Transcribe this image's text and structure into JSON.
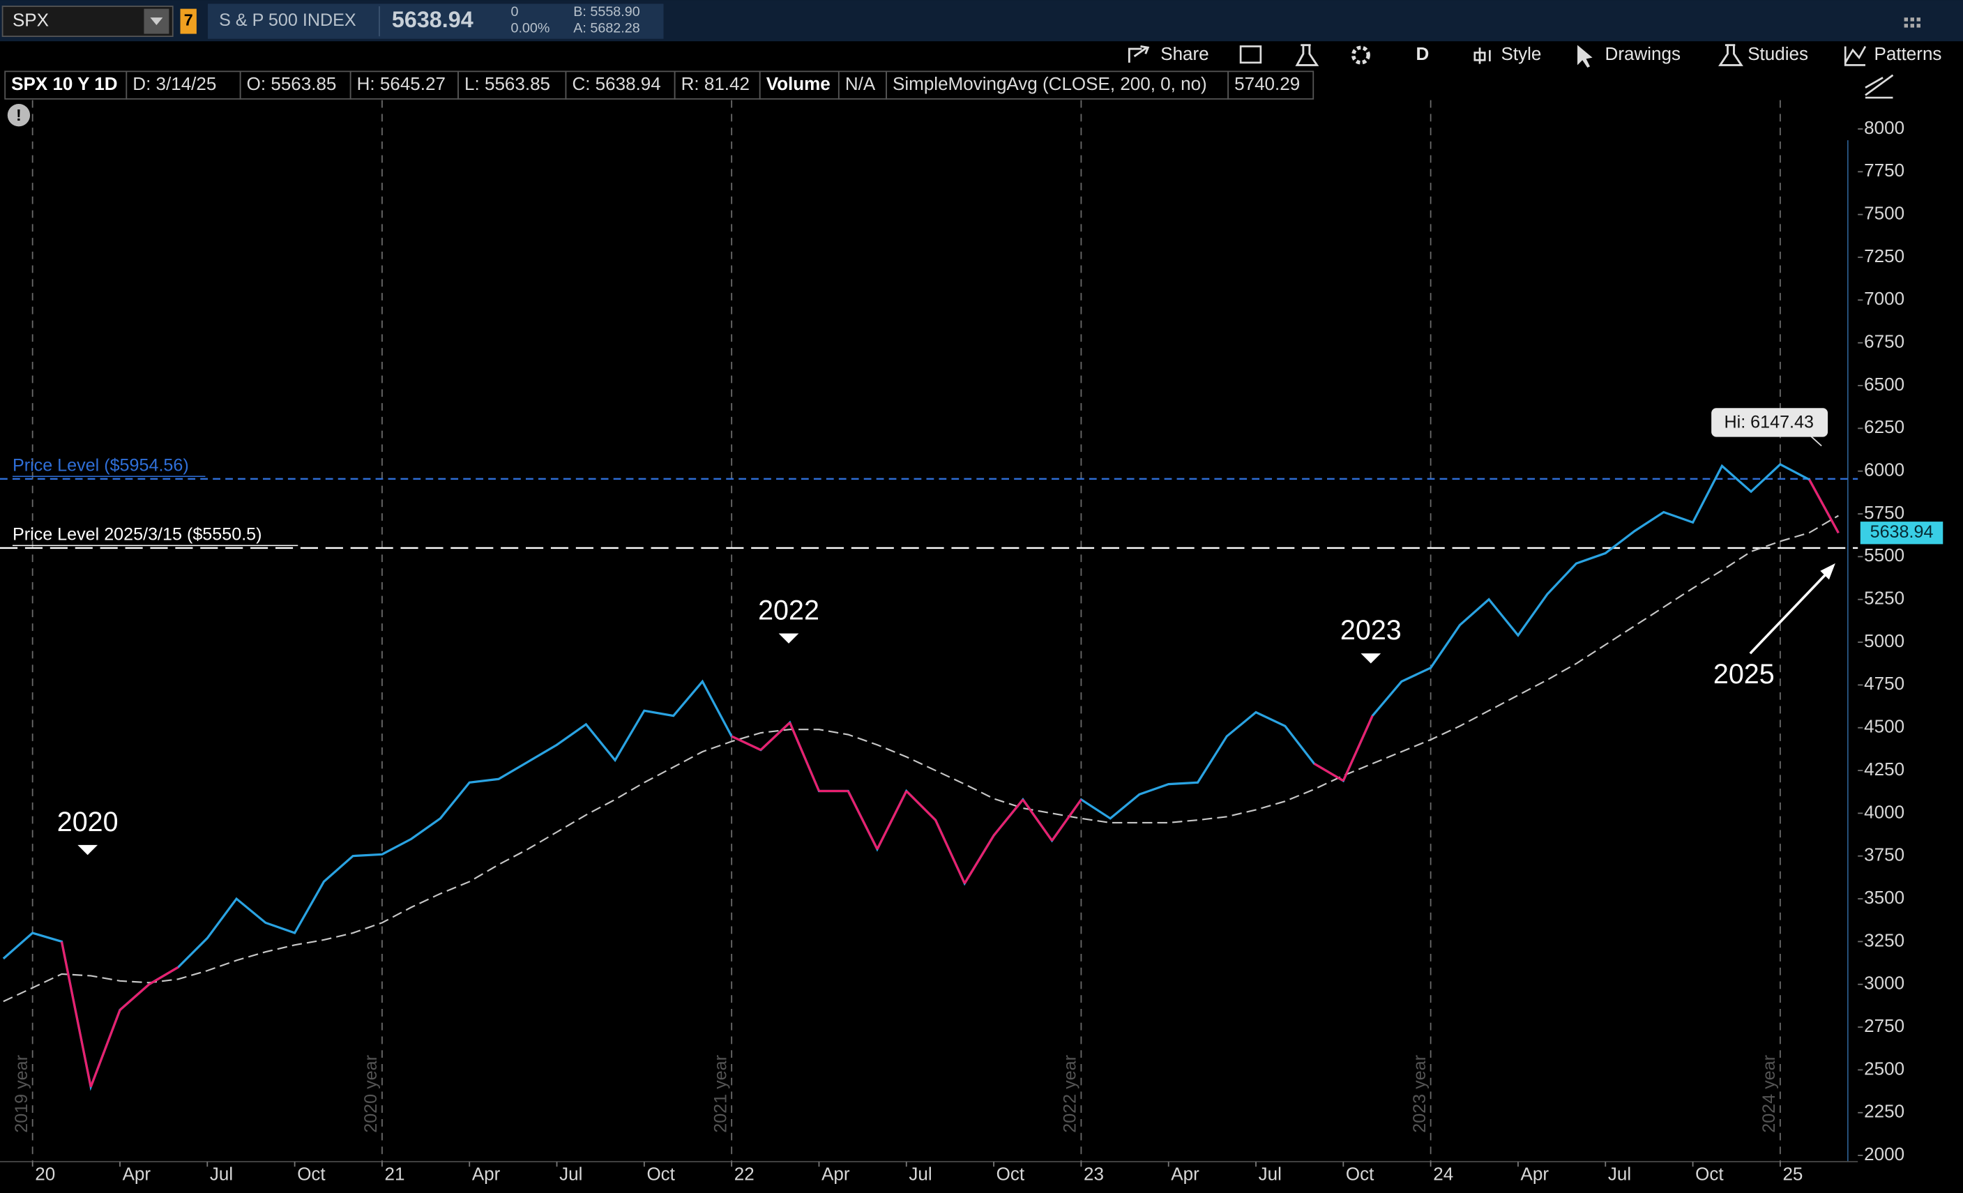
{
  "header": {
    "symbol": "SPX",
    "badge": "7",
    "description": "S & P 500 INDEX",
    "last": "5638.94",
    "change": "0",
    "change_pct": "0.00%",
    "bid": "B: 5558.90",
    "ask": "A: 5682.28"
  },
  "toolbar": {
    "share": "Share",
    "period": "D",
    "style": "Style",
    "drawings": "Drawings",
    "studies": "Studies",
    "patterns": "Patterns"
  },
  "info_bar": [
    "SPX 10 Y 1D",
    "D: 3/14/25",
    "O: 5563.85",
    "H: 5645.27",
    "L: 5563.85",
    "C: 5638.94",
    "R: 81.42",
    "Volume",
    "N/A",
    "5740.29"
  ],
  "chart_data": {
    "type": "line",
    "x": [
      "2019-12",
      "2020-01",
      "2020-02",
      "2020-03",
      "2020-04",
      "2020-05",
      "2020-06",
      "2020-07",
      "2020-08",
      "2020-09",
      "2020-10",
      "2020-11",
      "2020-12",
      "2021-01",
      "2021-02",
      "2021-03",
      "2021-04",
      "2021-05",
      "2021-06",
      "2021-07",
      "2021-08",
      "2021-09",
      "2021-10",
      "2021-11",
      "2021-12",
      "2022-01",
      "2022-02",
      "2022-03",
      "2022-04",
      "2022-05",
      "2022-06",
      "2022-07",
      "2022-08",
      "2022-09",
      "2022-10",
      "2022-11",
      "2022-12",
      "2023-01",
      "2023-02",
      "2023-03",
      "2023-04",
      "2023-05",
      "2023-06",
      "2023-07",
      "2023-08",
      "2023-09",
      "2023-10",
      "2023-11",
      "2023-12",
      "2024-01",
      "2024-02",
      "2024-03",
      "2024-04",
      "2024-05",
      "2024-06",
      "2024-07",
      "2024-08",
      "2024-09",
      "2024-10",
      "2024-11",
      "2024-12",
      "2025-01",
      "2025-02",
      "2025-03"
    ],
    "series": [
      {
        "color": "#2aa3e2",
        "down_color": "#e8206e",
        "values": [
          3150,
          3300,
          3250,
          2400,
          2850,
          3000,
          3100,
          3270,
          3500,
          3360,
          3300,
          3600,
          3750,
          3760,
          3850,
          3970,
          4180,
          4200,
          4300,
          4400,
          4520,
          4310,
          4600,
          4570,
          4770,
          4450,
          4370,
          4530,
          4130,
          4130,
          3790,
          4130,
          3960,
          3590,
          3870,
          4080,
          3840,
          4080,
          3970,
          4110,
          4170,
          4180,
          4450,
          4590,
          4510,
          4290,
          4190,
          4570,
          4770,
          4850,
          5100,
          5250,
          5040,
          5280,
          5460,
          5520,
          5650,
          5760,
          5700,
          6030,
          5880,
          6040,
          5950,
          5639
        ]
      },
      {
        "name": "SimpleMovingAvg (CLOSE, 200, 0, no)",
        "color": "#c8c8c8",
        "dashed": true,
        "values": [
          2900,
          2980,
          3060,
          3050,
          3020,
          3010,
          3030,
          3080,
          3140,
          3190,
          3230,
          3260,
          3300,
          3360,
          3450,
          3530,
          3600,
          3700,
          3790,
          3890,
          3990,
          4080,
          4180,
          4270,
          4360,
          4420,
          4470,
          4490,
          4490,
          4460,
          4400,
          4330,
          4250,
          4170,
          4085,
          4030,
          4000,
          3970,
          3945,
          3945,
          3945,
          3960,
          3980,
          4020,
          4070,
          4140,
          4220,
          4290,
          4360,
          4430,
          4510,
          4600,
          4690,
          4780,
          4875,
          4985,
          5095,
          5205,
          5315,
          5420,
          5530,
          5590,
          5640,
          5740
        ]
      }
    ],
    "ylim": [
      2000,
      8000
    ],
    "yticks": [
      2000,
      2250,
      2500,
      2750,
      3000,
      3250,
      3500,
      3750,
      4000,
      4250,
      4500,
      4750,
      5000,
      5250,
      5500,
      5750,
      6000,
      6250,
      6500,
      6750,
      7000,
      7250,
      7500,
      7750,
      8000
    ],
    "xticks": [
      {
        "value": "2020-01",
        "label": "20"
      },
      {
        "value": "2020-04",
        "label": "Apr"
      },
      {
        "value": "2020-07",
        "label": "Jul"
      },
      {
        "value": "2020-10",
        "label": "Oct"
      },
      {
        "value": "2021-01",
        "label": "21"
      },
      {
        "value": "2021-04",
        "label": "Apr"
      },
      {
        "value": "2021-07",
        "label": "Jul"
      },
      {
        "value": "2021-10",
        "label": "Oct"
      },
      {
        "value": "2022-01",
        "label": "22"
      },
      {
        "value": "2022-04",
        "label": "Apr"
      },
      {
        "value": "2022-07",
        "label": "Jul"
      },
      {
        "value": "2022-10",
        "label": "Oct"
      },
      {
        "value": "2023-01",
        "label": "23"
      },
      {
        "value": "2023-04",
        "label": "Apr"
      },
      {
        "value": "2023-07",
        "label": "Jul"
      },
      {
        "value": "2023-10",
        "label": "Oct"
      },
      {
        "value": "2024-01",
        "label": "24"
      },
      {
        "value": "2024-04",
        "label": "Apr"
      },
      {
        "value": "2024-07",
        "label": "Jul"
      },
      {
        "value": "2024-10",
        "label": "Oct"
      },
      {
        "value": "2025-01",
        "label": "25"
      }
    ],
    "year_markers": [
      {
        "value": "2020-01",
        "label": "2019 year"
      },
      {
        "value": "2021-01",
        "label": "2020 year"
      },
      {
        "value": "2022-01",
        "label": "2021 year"
      },
      {
        "value": "2023-01",
        "label": "2022 year"
      },
      {
        "value": "2024-01",
        "label": "2023 year"
      },
      {
        "value": "2025-01",
        "label": "2024 year"
      }
    ],
    "price_levels": [
      {
        "label": "Price Level ($5954.56)",
        "value": 5954.56,
        "color": "#2f6fd8"
      },
      {
        "label": "Price Level 2025/3/15 ($5550.5)",
        "value": 5550.5,
        "color": "#ffffff"
      }
    ],
    "high": {
      "label": "Hi: 6147.43",
      "value": 6147.43
    },
    "last_price": {
      "label": "5638.94",
      "value": 5638.94,
      "color": "#39cfe6"
    },
    "annotations": [
      {
        "text": "2020"
      },
      {
        "text": "2022"
      },
      {
        "text": "2023"
      },
      {
        "text": "2025"
      }
    ]
  }
}
